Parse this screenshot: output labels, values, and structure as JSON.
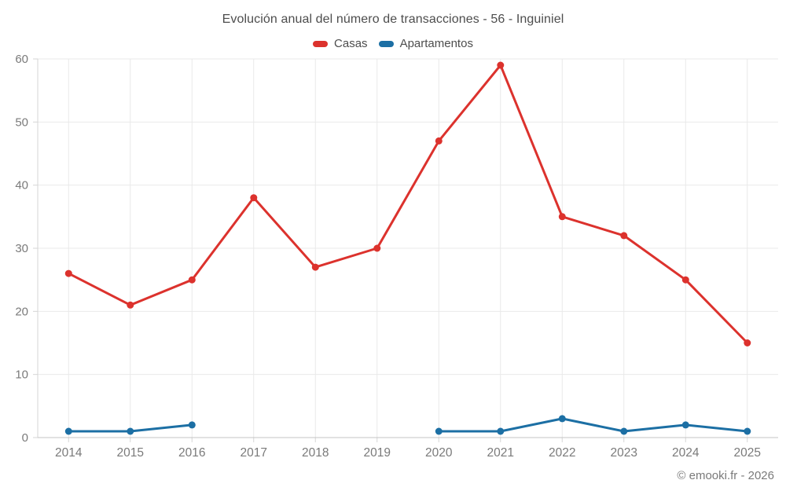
{
  "chart": {
    "title": "Evolución anual del número de transacciones - 56 - Inguiniel",
    "footer": "© emooki.fr - 2026"
  },
  "chart_data": {
    "type": "line",
    "title": "Evolución anual del número de transacciones - 56 - Inguiniel",
    "categories": [
      "2014",
      "2015",
      "2016",
      "2017",
      "2018",
      "2019",
      "2020",
      "2021",
      "2022",
      "2023",
      "2024",
      "2025"
    ],
    "series": [
      {
        "name": "Casas",
        "color": "#dc322d",
        "values": [
          26,
          21,
          25,
          38,
          27,
          30,
          47,
          59,
          35,
          32,
          25,
          15
        ]
      },
      {
        "name": "Apartamentos",
        "color": "#1c6fa4",
        "values": [
          1,
          1,
          2,
          null,
          null,
          null,
          1,
          1,
          3,
          1,
          2,
          1
        ]
      }
    ],
    "xlabel": "",
    "ylabel": "",
    "ylim": [
      0,
      60
    ],
    "yticks": [
      0,
      10,
      20,
      30,
      40,
      50,
      60
    ],
    "grid": true,
    "legend_position": "top",
    "marker": "circle"
  }
}
